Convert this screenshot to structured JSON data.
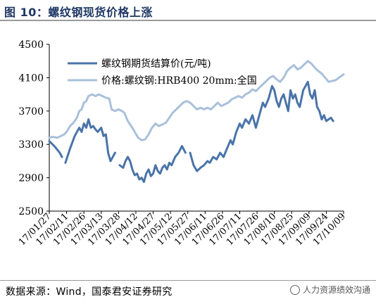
{
  "title": "图 10：螺纹钢现货价格上涨",
  "source": "数据来源：Wind，国泰君安证券研究",
  "watermark": "人力资源绩效沟通",
  "colors": {
    "series1": "#4a74a8",
    "series2": "#a9c0da",
    "title": "#1f3864"
  },
  "chart_data": {
    "type": "line",
    "ylim": [
      2500,
      4500
    ],
    "yticks": [
      2500,
      2900,
      3300,
      3700,
      4100,
      4500
    ],
    "xlabels": [
      "17/01/27",
      "17/02/11",
      "17/02/26",
      "17/03/13",
      "17/03/28",
      "17/04/12",
      "17/04/27",
      "17/05/12",
      "17/05/27",
      "17/06/11",
      "17/06/26",
      "17/07/11",
      "17/07/26",
      "17/08/10",
      "17/08/25",
      "17/09/09",
      "17/09/24",
      "17/10/09"
    ],
    "grid": false,
    "legend_position": "top-left",
    "series": [
      {
        "name": "螺纹钢期货结算价(元/吨)",
        "color": "#4a74a8",
        "width": 3,
        "points": [
          [
            "17/01/27",
            3340
          ],
          [
            "17/02/01",
            3270
          ],
          [
            "17/02/05",
            3200
          ],
          [
            "17/02/07",
            3150
          ],
          null,
          [
            "17/02/10",
            3080
          ],
          [
            "17/02/14",
            3250
          ],
          [
            "17/02/18",
            3400
          ],
          [
            "17/02/22",
            3500
          ],
          [
            "17/02/24",
            3450
          ],
          [
            "17/02/26",
            3550
          ],
          [
            "17/02/28",
            3500
          ],
          [
            "17/03/02",
            3600
          ],
          [
            "17/03/04",
            3500
          ],
          [
            "17/03/06",
            3520
          ],
          [
            "17/03/08",
            3480
          ],
          [
            "17/03/10",
            3450
          ],
          [
            "17/03/13",
            3500
          ],
          [
            "17/03/15",
            3400
          ],
          [
            "17/03/17",
            3420
          ],
          [
            "17/03/19",
            3200
          ],
          [
            "17/03/21",
            3100
          ],
          [
            "17/03/23",
            3150
          ],
          [
            "17/03/25",
            3200
          ],
          null,
          [
            "17/03/29",
            3050
          ],
          [
            "17/04/01",
            3020
          ],
          [
            "17/04/03",
            3100
          ],
          [
            "17/04/05",
            3150
          ],
          [
            "17/04/07",
            3100
          ],
          [
            "17/04/09",
            3000
          ],
          [
            "17/04/11",
            2930
          ],
          [
            "17/04/13",
            2950
          ],
          [
            "17/04/15",
            2880
          ],
          [
            "17/04/17",
            2900
          ],
          [
            "17/04/19",
            2850
          ],
          [
            "17/04/21",
            2950
          ],
          [
            "17/04/23",
            3000
          ],
          [
            "17/04/25",
            2920
          ],
          [
            "17/04/27",
            2950
          ],
          [
            "17/04/29",
            3050
          ],
          [
            "17/05/01",
            2980
          ],
          [
            "17/05/03",
            2950
          ],
          [
            "17/05/05",
            3020
          ],
          [
            "17/05/07",
            3050
          ],
          [
            "17/05/09",
            3000
          ],
          [
            "17/05/11",
            3080
          ],
          [
            "17/05/13",
            3050
          ],
          [
            "17/05/16",
            3150
          ],
          [
            "17/05/19",
            3200
          ],
          [
            "17/05/22",
            3280
          ],
          [
            "17/05/25",
            3200
          ],
          null,
          [
            "17/05/29",
            3200
          ],
          [
            "17/06/01",
            3050
          ],
          [
            "17/06/04",
            2980
          ],
          [
            "17/06/07",
            3020
          ],
          [
            "17/06/10",
            3050
          ],
          [
            "17/06/13",
            3100
          ],
          [
            "17/06/15",
            3080
          ],
          [
            "17/06/18",
            3150
          ],
          [
            "17/06/21",
            3120
          ],
          [
            "17/06/24",
            3200
          ],
          [
            "17/06/27",
            3150
          ],
          [
            "17/06/30",
            3250
          ],
          [
            "17/07/03",
            3350
          ],
          [
            "17/07/05",
            3300
          ],
          [
            "17/07/08",
            3450
          ],
          [
            "17/07/11",
            3550
          ],
          [
            "17/07/13",
            3500
          ],
          [
            "17/07/16",
            3600
          ],
          [
            "17/07/19",
            3550
          ],
          [
            "17/07/22",
            3650
          ],
          [
            "17/07/25",
            3500
          ],
          [
            "17/07/28",
            3650
          ],
          [
            "17/07/31",
            3800
          ],
          [
            "17/08/02",
            3750
          ],
          [
            "17/08/05",
            3850
          ],
          [
            "17/08/08",
            4000
          ],
          [
            "17/08/10",
            3950
          ],
          [
            "17/08/12",
            3820
          ],
          [
            "17/08/14",
            3750
          ],
          [
            "17/08/16",
            3850
          ],
          [
            "17/08/18",
            3900
          ],
          [
            "17/08/20",
            3800
          ],
          [
            "17/08/22",
            3700
          ],
          [
            "17/08/24",
            3950
          ],
          [
            "17/08/26",
            3850
          ],
          [
            "17/08/28",
            3900
          ],
          [
            "17/08/30",
            3800
          ],
          [
            "17/09/01",
            3750
          ],
          [
            "17/09/04",
            3950
          ],
          [
            "17/09/06",
            4000
          ],
          [
            "17/09/08",
            4050
          ],
          [
            "17/09/10",
            3900
          ],
          [
            "17/09/12",
            3850
          ],
          [
            "17/09/14",
            3950
          ],
          [
            "17/09/16",
            3750
          ],
          [
            "17/09/18",
            3700
          ],
          [
            "17/09/20",
            3600
          ],
          [
            "17/09/22",
            3650
          ],
          [
            "17/09/24",
            3580
          ],
          [
            "17/09/26",
            3600
          ],
          [
            "17/09/28",
            3620
          ],
          [
            "17/09/30",
            3580
          ]
        ]
      },
      {
        "name": "价格:螺纹钢:HRB400 20mm:全国",
        "color": "#a9c0da",
        "width": 3,
        "points": [
          [
            "17/01/27",
            3380
          ],
          [
            "17/01/30",
            3390
          ],
          [
            "17/02/03",
            3380
          ],
          [
            "17/02/06",
            3400
          ],
          [
            "17/02/09",
            3420
          ],
          [
            "17/02/11",
            3450
          ],
          [
            "17/02/14",
            3520
          ],
          [
            "17/02/17",
            3560
          ],
          [
            "17/02/20",
            3620
          ],
          [
            "17/02/22",
            3700
          ],
          [
            "17/02/24",
            3720
          ],
          [
            "17/02/26",
            3800
          ],
          [
            "17/02/28",
            3820
          ],
          [
            "17/03/02",
            3880
          ],
          [
            "17/03/05",
            3900
          ],
          [
            "17/03/08",
            3880
          ],
          [
            "17/03/11",
            3900
          ],
          [
            "17/03/14",
            3880
          ],
          [
            "17/03/17",
            3860
          ],
          [
            "17/03/20",
            3850
          ],
          [
            "17/03/22",
            3720
          ],
          [
            "17/03/25",
            3700
          ],
          [
            "17/03/28",
            3720
          ],
          [
            "17/03/31",
            3700
          ],
          [
            "17/04/02",
            3680
          ],
          [
            "17/04/05",
            3580
          ],
          [
            "17/04/08",
            3520
          ],
          [
            "17/04/11",
            3450
          ],
          [
            "17/04/14",
            3380
          ],
          [
            "17/04/17",
            3350
          ],
          [
            "17/04/20",
            3360
          ],
          [
            "17/04/23",
            3420
          ],
          [
            "17/04/26",
            3500
          ],
          [
            "17/04/29",
            3550
          ],
          [
            "17/05/02",
            3520
          ],
          [
            "17/05/05",
            3540
          ],
          [
            "17/05/08",
            3560
          ],
          [
            "17/05/11",
            3620
          ],
          [
            "17/05/14",
            3680
          ],
          [
            "17/05/17",
            3720
          ],
          [
            "17/05/20",
            3760
          ],
          [
            "17/05/23",
            3800
          ],
          [
            "17/05/26",
            3820
          ],
          [
            "17/05/29",
            3800
          ],
          [
            "17/06/01",
            3760
          ],
          [
            "17/06/04",
            3720
          ],
          [
            "17/06/07",
            3740
          ],
          [
            "17/06/10",
            3720
          ],
          [
            "17/06/13",
            3740
          ],
          [
            "17/06/16",
            3720
          ],
          [
            "17/06/19",
            3760
          ],
          [
            "17/06/22",
            3800
          ],
          [
            "17/06/25",
            3760
          ],
          [
            "17/06/28",
            3780
          ],
          [
            "17/07/01",
            3800
          ],
          [
            "17/07/04",
            3840
          ],
          [
            "17/07/07",
            3860
          ],
          [
            "17/07/10",
            3880
          ],
          [
            "17/07/13",
            3860
          ],
          [
            "17/07/16",
            3900
          ],
          [
            "17/07/19",
            3920
          ],
          [
            "17/07/22",
            3960
          ],
          [
            "17/07/25",
            3940
          ],
          [
            "17/07/28",
            3980
          ],
          [
            "17/07/31",
            4020
          ],
          [
            "17/08/03",
            4060
          ],
          [
            "17/08/06",
            4100
          ],
          [
            "17/08/09",
            4120
          ],
          [
            "17/08/12",
            4080
          ],
          [
            "17/08/15",
            4050
          ],
          [
            "17/08/18",
            4100
          ],
          [
            "17/08/21",
            4180
          ],
          [
            "17/08/24",
            4220
          ],
          [
            "17/08/27",
            4250
          ],
          [
            "17/08/30",
            4200
          ],
          [
            "17/09/02",
            4220
          ],
          [
            "17/09/05",
            4260
          ],
          [
            "17/09/08",
            4300
          ],
          [
            "17/09/11",
            4270
          ],
          [
            "17/09/14",
            4220
          ],
          [
            "17/09/17",
            4180
          ],
          [
            "17/09/20",
            4150
          ],
          [
            "17/09/23",
            4100
          ],
          [
            "17/09/26",
            4050
          ],
          [
            "17/09/29",
            4060
          ],
          [
            "17/10/02",
            4070
          ],
          [
            "17/10/05",
            4100
          ],
          [
            "17/10/09",
            4140
          ]
        ]
      }
    ]
  }
}
